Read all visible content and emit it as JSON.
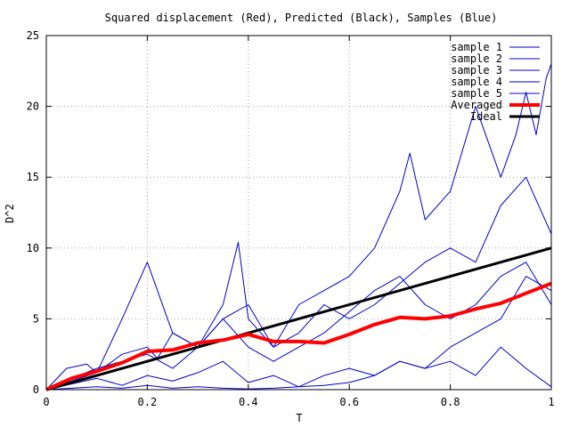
{
  "chart_data": {
    "type": "line",
    "title": "Squared displacement (Red), Predicted (Black), Samples (Blue)",
    "xlabel": "T",
    "ylabel": "D^2",
    "xlim": [
      0,
      1
    ],
    "ylim": [
      0,
      25
    ],
    "x_ticks": [
      0,
      0.2,
      0.4,
      0.6,
      0.8,
      1
    ],
    "x_tick_labels": [
      "0",
      "0.2",
      "0.4",
      "0.6",
      "0.8",
      "1"
    ],
    "y_ticks": [
      0,
      5,
      10,
      15,
      20,
      25
    ],
    "y_tick_labels": [
      "0",
      "5",
      "10",
      "15",
      "20",
      "25"
    ],
    "grid": true,
    "legend_position": "top-right",
    "colors": {
      "samples": "#0000cc",
      "averaged": "#ff0000",
      "ideal": "#000000",
      "grid": "#a0a0a0"
    },
    "series": [
      {
        "name": "sample 1",
        "x": [
          0,
          0.04,
          0.08,
          0.1,
          0.15,
          0.2,
          0.22,
          0.25,
          0.3,
          0.35,
          0.38,
          0.4,
          0.45,
          0.5,
          0.55,
          0.6,
          0.65,
          0.7,
          0.72,
          0.75,
          0.8,
          0.85,
          0.88,
          0.9,
          0.93,
          0.95,
          0.97,
          0.99,
          1.0
        ],
        "y": [
          0,
          1.5,
          1.8,
          1.2,
          2.5,
          3.0,
          2.2,
          4.0,
          3.0,
          6.0,
          10.4,
          5.0,
          3.0,
          6.0,
          7.0,
          8.0,
          10.0,
          14.0,
          16.7,
          12.0,
          14.0,
          20.0,
          17.0,
          15.0,
          18.0,
          21.0,
          18.0,
          22.0,
          23.0
        ]
      },
      {
        "name": "sample 2",
        "x": [
          0,
          0.05,
          0.1,
          0.15,
          0.2,
          0.25,
          0.3,
          0.35,
          0.4,
          0.45,
          0.5,
          0.55,
          0.6,
          0.65,
          0.7,
          0.75,
          0.8,
          0.85,
          0.9,
          0.95,
          1.0
        ],
        "y": [
          0,
          0.6,
          1.2,
          5.0,
          9.0,
          4.0,
          3.0,
          5.0,
          6.0,
          3.0,
          4.0,
          6.0,
          5.0,
          6.0,
          7.5,
          9.0,
          10.0,
          9.0,
          13.0,
          15.0,
          11.0
        ]
      },
      {
        "name": "sample 3",
        "x": [
          0,
          0.05,
          0.1,
          0.15,
          0.2,
          0.25,
          0.3,
          0.35,
          0.4,
          0.45,
          0.5,
          0.55,
          0.6,
          0.65,
          0.7,
          0.75,
          0.8,
          0.85,
          0.9,
          0.95,
          1.0
        ],
        "y": [
          0,
          0.8,
          1.5,
          2.0,
          2.5,
          1.5,
          3.0,
          5.0,
          3.0,
          2.0,
          3.0,
          4.0,
          5.5,
          7.0,
          8.0,
          6.0,
          5.0,
          6.0,
          8.0,
          9.0,
          6.0
        ]
      },
      {
        "name": "sample 4",
        "x": [
          0,
          0.05,
          0.1,
          0.15,
          0.2,
          0.25,
          0.3,
          0.35,
          0.4,
          0.45,
          0.5,
          0.55,
          0.6,
          0.65,
          0.7,
          0.75,
          0.8,
          0.85,
          0.9,
          0.95,
          1.0
        ],
        "y": [
          0,
          0.4,
          0.8,
          0.3,
          1.0,
          0.6,
          1.2,
          2.0,
          0.5,
          1.0,
          0.2,
          1.0,
          1.5,
          1.0,
          2.0,
          1.5,
          2.0,
          1.0,
          3.0,
          1.5,
          0.2
        ]
      },
      {
        "name": "sample 5",
        "x": [
          0,
          0.05,
          0.1,
          0.15,
          0.2,
          0.25,
          0.3,
          0.35,
          0.4,
          0.45,
          0.5,
          0.55,
          0.6,
          0.65,
          0.7,
          0.75,
          0.8,
          0.85,
          0.9,
          0.95,
          1.0
        ],
        "y": [
          0,
          0.1,
          0.2,
          0.1,
          0.3,
          0.1,
          0.2,
          0.1,
          0.05,
          0.1,
          0.2,
          0.3,
          0.5,
          1.0,
          2.0,
          1.5,
          3.0,
          4.0,
          5.0,
          8.0,
          7.0
        ]
      },
      {
        "name": "Averaged",
        "x": [
          0,
          0.05,
          0.1,
          0.15,
          0.2,
          0.25,
          0.3,
          0.35,
          0.4,
          0.45,
          0.5,
          0.55,
          0.6,
          0.65,
          0.7,
          0.75,
          0.8,
          0.85,
          0.9,
          0.95,
          1.0
        ],
        "y": [
          0,
          0.8,
          1.3,
          1.9,
          2.7,
          2.8,
          3.3,
          3.5,
          3.9,
          3.4,
          3.4,
          3.3,
          3.9,
          4.6,
          5.1,
          5.0,
          5.2,
          5.7,
          6.1,
          6.8,
          7.5
        ]
      },
      {
        "name": "Ideal",
        "x": [
          0,
          1
        ],
        "y": [
          0,
          10
        ]
      }
    ]
  }
}
